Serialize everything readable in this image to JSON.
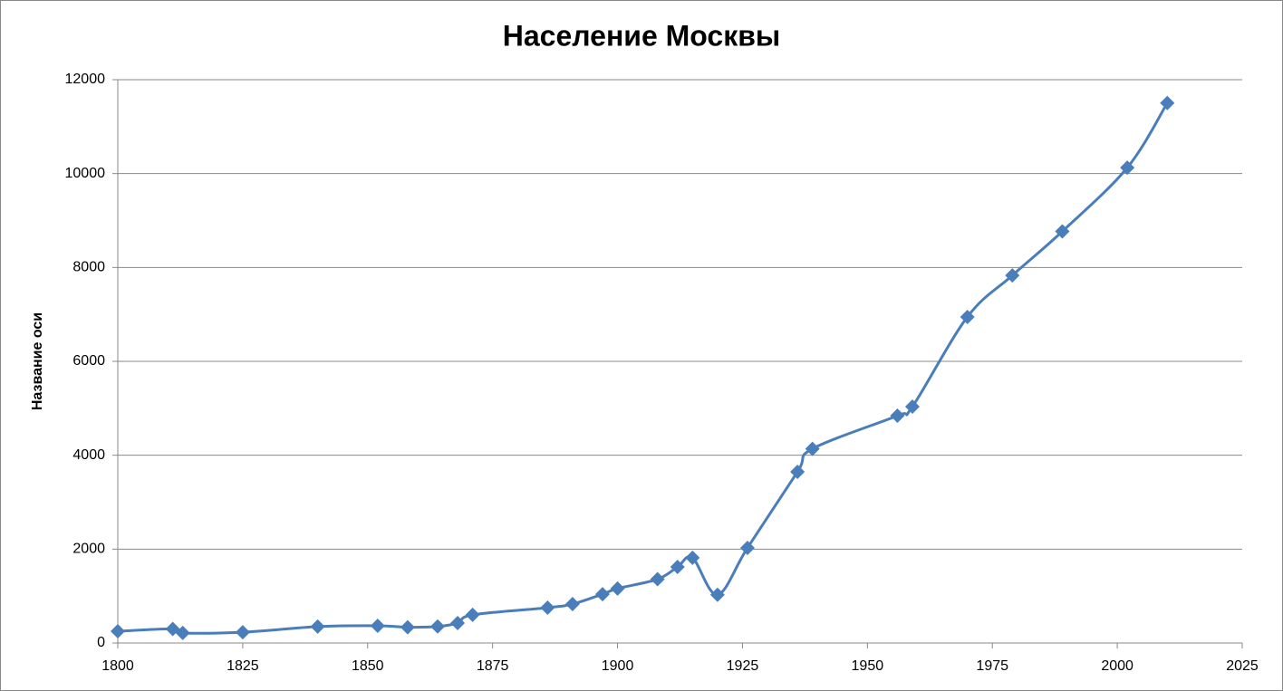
{
  "chart_data": {
    "type": "line",
    "title": "Население Москвы",
    "y_label": "Название оси",
    "x": [
      1800,
      1811,
      1813,
      1825,
      1840,
      1852,
      1858,
      1864,
      1868,
      1871,
      1886,
      1891,
      1897,
      1900,
      1908,
      1912,
      1915,
      1920,
      1926,
      1936,
      1939,
      1956,
      1959,
      1970,
      1979,
      1989,
      2002,
      2010
    ],
    "series": [
      {
        "color": "#4a7ebb",
        "values": [
          250,
          300,
          215,
          230,
          349,
          367,
          336,
          351,
          425,
          600,
          753,
          830,
          1040,
          1160,
          1359,
          1620,
          1815,
          1028,
          2026,
          3646,
          4137,
          4843,
          5036,
          6946,
          7831,
          8769,
          10126,
          11503
        ]
      }
    ],
    "xlim": [
      1800,
      2025
    ],
    "xticks": [
      1800,
      1825,
      1850,
      1875,
      1900,
      1925,
      1950,
      1975,
      2000,
      2025
    ],
    "ylim": [
      0,
      12000
    ],
    "yticks": [
      0,
      2000,
      4000,
      6000,
      8000,
      10000,
      12000
    ],
    "grid": true,
    "smooth": true
  }
}
